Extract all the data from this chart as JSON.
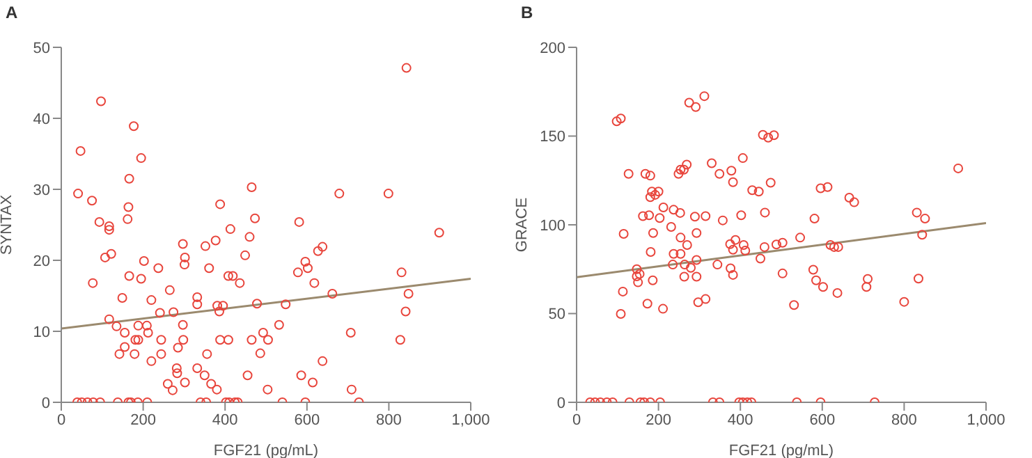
{
  "chart_data": [
    {
      "type": "scatter",
      "title": "A",
      "xlabel": "FGF21 (pg/mL)",
      "ylabel": "SYNTAX",
      "xlim": [
        0,
        1000
      ],
      "xticks": [
        0,
        200,
        400,
        600,
        800,
        {
          "value": 1000,
          "label": "1,000"
        }
      ],
      "ylim": [
        0,
        50
      ],
      "yticks": [
        0,
        10,
        20,
        30,
        40,
        50
      ],
      "series": [
        {
          "color": "#e8453c",
          "marker": "circle",
          "x": [
            39,
            50,
            64,
            78,
            95,
            138,
            164,
            170,
            187,
            210,
            340,
            354,
            402,
            410,
            424,
            431,
            540,
            596,
            727,
            97,
            177,
            47,
            195,
            166,
            41,
            75,
            164,
            162,
            93,
            117,
            117,
            122,
            107,
            202,
            77,
            195,
            149,
            220,
            237,
            166,
            265,
            241,
            274,
            117,
            135,
            155,
            188,
            209,
            212,
            155,
            142,
            179,
            181,
            188,
            220,
            244,
            244,
            285,
            283,
            282,
            260,
            272,
            302,
            297,
            302,
            301,
            332,
            332,
            297,
            298,
            332,
            350,
            352,
            361,
            356,
            366,
            380,
            377,
            388,
            381,
            395,
            386,
            388,
            408,
            413,
            408,
            419,
            436,
            449,
            460,
            465,
            473,
            478,
            455,
            465,
            486,
            493,
            505,
            504,
            843,
            679,
            799,
            581,
            923,
            638,
            627,
            596,
            602,
            578,
            831,
            618,
            662,
            848,
            548,
            841,
            532,
            707,
            828,
            638,
            586,
            614,
            709
          ],
          "values": [
            0,
            0,
            0,
            0,
            0,
            0,
            0,
            0,
            0,
            0,
            0,
            0,
            0,
            0,
            0,
            0,
            0,
            0,
            0,
            42.4,
            38.9,
            35.4,
            34.4,
            31.5,
            29.4,
            28.4,
            27.5,
            25.8,
            25.4,
            24.8,
            24.3,
            20.9,
            20.4,
            19.9,
            16.8,
            17.4,
            14.7,
            14.4,
            18.9,
            17.8,
            15.8,
            12.6,
            12.7,
            11.7,
            10.7,
            9.8,
            10.8,
            10.8,
            9.8,
            7.8,
            6.8,
            6.8,
            8.8,
            8.8,
            5.8,
            8.8,
            6.8,
            7.7,
            4.1,
            4.8,
            2.6,
            1.7,
            2.8,
            22.3,
            20.4,
            19.4,
            14.8,
            13.8,
            10.9,
            8.8,
            4.8,
            3.8,
            22.0,
            18.9,
            6.8,
            2.6,
            1.8,
            22.8,
            27.9,
            13.6,
            13.6,
            12.8,
            8.8,
            8.8,
            24.4,
            17.8,
            17.8,
            16.8,
            20.7,
            23.3,
            30.3,
            25.9,
            13.9,
            3.8,
            8.8,
            6.9,
            9.8,
            8.8,
            1.8,
            47.1,
            29.4,
            29.4,
            25.4,
            23.9,
            21.9,
            21.3,
            19.8,
            18.9,
            18.3,
            18.3,
            16.8,
            15.3,
            15.3,
            13.8,
            12.8,
            10.9,
            9.8,
            8.8,
            5.8,
            3.8,
            2.8,
            1.8
          ]
        },
        {
          "type": "line",
          "marker": "none",
          "color": "#9b8a6e",
          "x": [
            0,
            1000
          ],
          "values": [
            10.4,
            17.4
          ]
        }
      ]
    },
    {
      "type": "scatter",
      "title": "B",
      "xlabel": "FGF21 (pg/mL)",
      "ylabel": "GRACE",
      "xlim": [
        0,
        1000
      ],
      "xticks": [
        0,
        200,
        400,
        600,
        800,
        {
          "value": 1000,
          "label": "1,000"
        }
      ],
      "ylim": [
        0,
        200
      ],
      "yticks": [
        0,
        50,
        100,
        150,
        200
      ],
      "series": [
        {
          "color": "#e8453c",
          "marker": "circle",
          "x": [
            33,
            45,
            58,
            74,
            88,
            129,
            156,
            165,
            180,
            204,
            333,
            349,
            397,
            406,
            417,
            427,
            538,
            596,
            728,
            98,
            108,
            275,
            291,
            312,
            127,
            168,
            180,
            184,
            200,
            192,
            180,
            249,
            254,
            262,
            269,
            330,
            349,
            378,
            382,
            406,
            429,
            212,
            203,
            237,
            253,
            162,
            177,
            315,
            289,
            357,
            402,
            115,
            187,
            293,
            231,
            254,
            270,
            181,
            237,
            254,
            235,
            264,
            279,
            293,
            344,
            375,
            388,
            382,
            408,
            412,
            376,
            382,
            147,
            147,
            150,
            154,
            186,
            263,
            293,
            113,
            108,
            173,
            211,
            297,
            315,
            455,
            468,
            482,
            474,
            445,
            596,
            613,
            666,
            678,
            831,
            851,
            932,
            460,
            581,
            546,
            503,
            488,
            459,
            620,
            629,
            639,
            844,
            449,
            503,
            578,
            585,
            602,
            637,
            711,
            708,
            835,
            531,
            800
          ],
          "values": [
            0,
            0,
            0,
            0,
            0,
            0,
            0,
            0,
            0,
            0,
            0,
            0,
            0,
            0,
            0,
            0,
            0,
            0,
            0,
            158.3,
            159.9,
            168.8,
            166.4,
            172.5,
            128.7,
            128.7,
            127.7,
            118.7,
            118.7,
            116.9,
            115.6,
            128.7,
            131.1,
            131.1,
            133.9,
            134.7,
            128.7,
            130.5,
            124,
            137.6,
            119.5,
            109.8,
            103.8,
            108.5,
            106.7,
            104.9,
            105.4,
            104.9,
            104.6,
            102.5,
            105.4,
            94.9,
            95.4,
            95.4,
            98.8,
            92.8,
            88.6,
            84.7,
            83.6,
            83.6,
            77.6,
            77.6,
            75.8,
            80.2,
            77.6,
            89.1,
            91.5,
            86,
            88.6,
            85.5,
            75.5,
            71.8,
            75,
            71,
            67.6,
            72.3,
            68.7,
            70.8,
            70.8,
            62.4,
            49.8,
            55.6,
            52.7,
            56.4,
            58.2,
            150.7,
            149.1,
            150.5,
            123.7,
            118.7,
            120.6,
            121.3,
            115.3,
            112.7,
            106.9,
            103.5,
            131.8,
            106.9,
            103.5,
            92.8,
            89.9,
            88.9,
            87.5,
            88.6,
            87.5,
            87.5,
            94.4,
            81,
            72.6,
            74.7,
            68.7,
            65,
            61.6,
            69.5,
            65,
            69.7,
            54.8,
            56.6
          ]
        },
        {
          "type": "line",
          "marker": "none",
          "color": "#9b8a6e",
          "x": [
            0,
            1000
          ],
          "values": [
            70.5,
            101
          ]
        }
      ]
    }
  ]
}
